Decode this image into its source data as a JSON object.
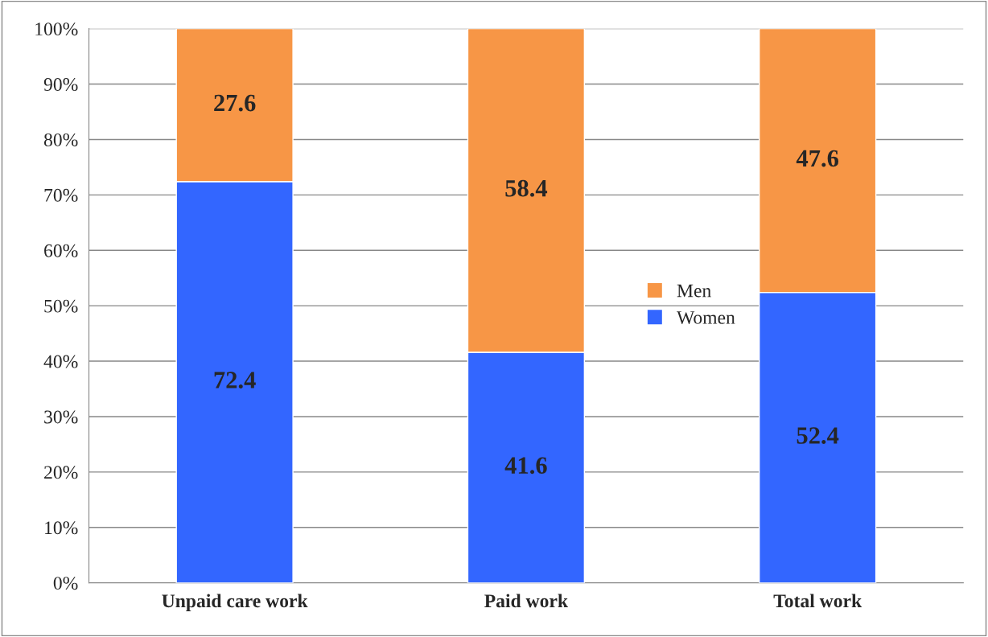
{
  "chart_data": {
    "type": "bar",
    "stacked": true,
    "categories": [
      "Unpaid care work",
      "Paid work",
      "Total work"
    ],
    "series": [
      {
        "name": "Women",
        "color": "#3366ff",
        "values": [
          72.4,
          41.6,
          52.4
        ]
      },
      {
        "name": "Men",
        "color": "#f79646",
        "values": [
          27.6,
          58.4,
          47.6
        ]
      }
    ],
    "ylim": [
      0,
      100
    ],
    "yticks": [
      {
        "value": 0,
        "label": "0%"
      },
      {
        "value": 10,
        "label": "10%"
      },
      {
        "value": 20,
        "label": "20%"
      },
      {
        "value": 30,
        "label": "30%"
      },
      {
        "value": 40,
        "label": "40%"
      },
      {
        "value": 50,
        "label": "50%"
      },
      {
        "value": 60,
        "label": "60%"
      },
      {
        "value": 70,
        "label": "70%"
      },
      {
        "value": 80,
        "label": "80%"
      },
      {
        "value": 90,
        "label": "90%"
      },
      {
        "value": 100,
        "label": "100%"
      }
    ],
    "grid": "y",
    "legend": "right",
    "data_labels": true
  }
}
